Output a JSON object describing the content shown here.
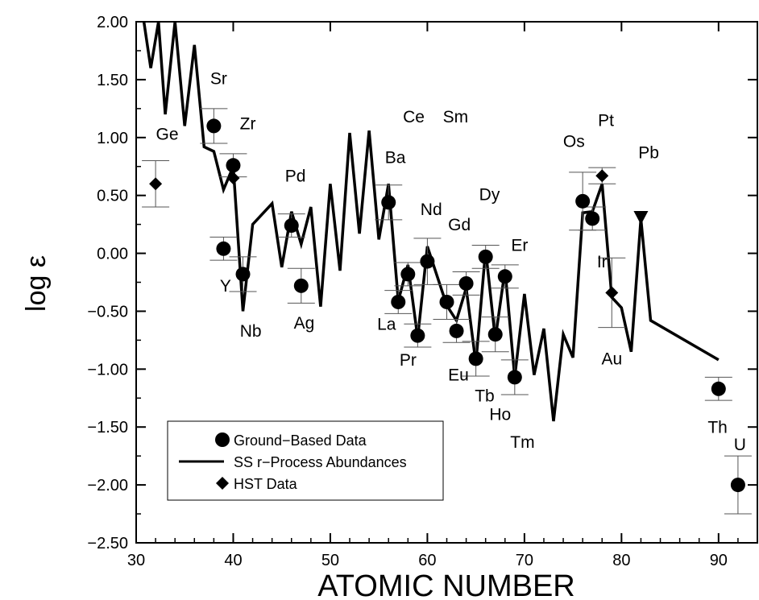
{
  "chart_data": {
    "type": "scatter",
    "title": "",
    "xlabel": "ATOMIC NUMBER",
    "ylabel": "log ε",
    "xlim": [
      30,
      94
    ],
    "ylim": [
      -2.5,
      2.0
    ],
    "xticks": [
      30,
      40,
      50,
      60,
      70,
      80,
      90
    ],
    "xtick_labels": [
      "30",
      "40",
      "50",
      "60",
      "70",
      "80",
      "90"
    ],
    "yticks": [
      2.0,
      1.5,
      1.0,
      0.5,
      0.0,
      -0.5,
      -1.0,
      -1.5,
      -2.0,
      -2.5
    ],
    "ytick_labels": [
      "2.00",
      "1.50",
      "1.00",
      "0.50",
      "0.00",
      "−0.50",
      "−1.00",
      "−1.50",
      "−2.00",
      "−2.50"
    ],
    "grid": false,
    "legend": {
      "position": "bottom-left",
      "entries": [
        "Ground−Based Data",
        "SS r−Process Abundances",
        "HST Data"
      ]
    },
    "series": [
      {
        "name": "Ground−Based Data",
        "marker": "circle",
        "points": [
          {
            "x": 38,
            "y": 1.1,
            "err": 0.15
          },
          {
            "x": 39,
            "y": 0.04,
            "err": 0.1
          },
          {
            "x": 40,
            "y": 0.76,
            "err": 0.1
          },
          {
            "x": 41,
            "y": -0.18,
            "err": 0.15
          },
          {
            "x": 46,
            "y": 0.24,
            "err": 0.1
          },
          {
            "x": 47,
            "y": -0.28,
            "err": 0.15
          },
          {
            "x": 56,
            "y": 0.44,
            "err": 0.15
          },
          {
            "x": 57,
            "y": -0.42,
            "err": 0.1
          },
          {
            "x": 58,
            "y": -0.18,
            "err": 0.1
          },
          {
            "x": 59,
            "y": -0.71,
            "err": 0.1
          },
          {
            "x": 60,
            "y": -0.07,
            "err": 0.2
          },
          {
            "x": 62,
            "y": -0.42,
            "err": 0.15
          },
          {
            "x": 63,
            "y": -0.67,
            "err": 0.1
          },
          {
            "x": 64,
            "y": -0.26,
            "err": 0.1
          },
          {
            "x": 65,
            "y": -0.91,
            "err": 0.15
          },
          {
            "x": 66,
            "y": -0.03,
            "err": 0.1
          },
          {
            "x": 67,
            "y": -0.7,
            "err": 0.15
          },
          {
            "x": 68,
            "y": -0.2,
            "err": 0.1
          },
          {
            "x": 69,
            "y": -1.07,
            "err": 0.15
          },
          {
            "x": 76,
            "y": 0.45,
            "err": 0.25
          },
          {
            "x": 77,
            "y": 0.3,
            "err": 0.1
          },
          {
            "x": 90,
            "y": -1.17,
            "err": 0.1
          },
          {
            "x": 92,
            "y": -2.0,
            "err": 0.25
          }
        ]
      },
      {
        "name": "HST Data",
        "marker": "diamond",
        "points": [
          {
            "x": 32,
            "y": 0.6,
            "err": 0.2
          },
          {
            "x": 40,
            "y": 0.65,
            "err": 0.0
          },
          {
            "x": 78,
            "y": 0.67,
            "err": 0.07
          },
          {
            "x": 79,
            "y": -0.34,
            "err": 0.3
          }
        ]
      },
      {
        "name": "SS r−Process Abundances",
        "marker": "line",
        "x": [
          30.8,
          31.5,
          32.3,
          33.0,
          34.0,
          35.0,
          36.0,
          37.0,
          38.0,
          39.0,
          40.0,
          41.0,
          42.0,
          44.0,
          45.0,
          46.0,
          47.0,
          48.0,
          49.0,
          50.0,
          51.0,
          52.0,
          53.0,
          54.0,
          55.0,
          56.0,
          57.0,
          58.0,
          59.0,
          60.0,
          62.0,
          63.0,
          64.0,
          65.0,
          66.0,
          67.0,
          68.0,
          69.0,
          70.0,
          71.0,
          72.0,
          73.0,
          74.0,
          75.0,
          76.0,
          77.0,
          78.0,
          79.0,
          80.0,
          81.0,
          82.0,
          83.0,
          90.0
        ],
        "y": [
          2.0,
          1.6,
          2.0,
          1.2,
          2.0,
          1.1,
          1.8,
          0.92,
          0.88,
          0.55,
          0.75,
          -0.5,
          0.25,
          0.43,
          -0.12,
          0.36,
          0.08,
          0.4,
          -0.46,
          0.6,
          -0.15,
          1.04,
          0.17,
          1.06,
          0.12,
          0.6,
          -0.41,
          -0.1,
          -0.73,
          0.06,
          -0.45,
          -0.58,
          -0.3,
          -0.95,
          0.03,
          -0.74,
          -0.14,
          -1.07,
          -0.35,
          -1.05,
          -0.65,
          -1.45,
          -0.7,
          -0.9,
          0.35,
          0.36,
          0.6,
          -0.38,
          -0.47,
          -0.85,
          0.3,
          -0.58,
          -0.92
        ]
      },
      {
        "name": "Pb",
        "marker": "triangle-down",
        "points": [
          {
            "x": 82,
            "y": 0.31
          }
        ]
      }
    ],
    "annotations": [
      {
        "text": "Ge",
        "x": 33.2,
        "y": 0.98
      },
      {
        "text": "Sr",
        "x": 38.5,
        "y": 1.46
      },
      {
        "text": "Zr",
        "x": 41.5,
        "y": 1.07
      },
      {
        "text": "Y",
        "x": 39.2,
        "y": -0.33
      },
      {
        "text": "Nb",
        "x": 41.8,
        "y": -0.72
      },
      {
        "text": "Pd",
        "x": 46.4,
        "y": 0.62
      },
      {
        "text": "Ag",
        "x": 47.3,
        "y": -0.65
      },
      {
        "text": "Ce",
        "x": 58.6,
        "y": 1.13
      },
      {
        "text": "Sm",
        "x": 62.9,
        "y": 1.13
      },
      {
        "text": "Ba",
        "x": 56.7,
        "y": 0.78
      },
      {
        "text": "Nd",
        "x": 60.4,
        "y": 0.33
      },
      {
        "text": "Gd",
        "x": 63.3,
        "y": 0.2
      },
      {
        "text": "Dy",
        "x": 66.4,
        "y": 0.46
      },
      {
        "text": "Er",
        "x": 69.5,
        "y": 0.02
      },
      {
        "text": "La",
        "x": 55.8,
        "y": -0.66
      },
      {
        "text": "Pr",
        "x": 58.0,
        "y": -0.97
      },
      {
        "text": "Eu",
        "x": 63.2,
        "y": -1.1
      },
      {
        "text": "Tb",
        "x": 65.9,
        "y": -1.28
      },
      {
        "text": "Ho",
        "x": 67.5,
        "y": -1.44
      },
      {
        "text": "Tm",
        "x": 69.8,
        "y": -1.68
      },
      {
        "text": "Os",
        "x": 75.1,
        "y": 0.92
      },
      {
        "text": "Pt",
        "x": 78.4,
        "y": 1.1
      },
      {
        "text": "Pb",
        "x": 82.8,
        "y": 0.82
      },
      {
        "text": "Ir",
        "x": 78.0,
        "y": -0.12
      },
      {
        "text": "Au",
        "x": 79.0,
        "y": -0.96
      },
      {
        "text": "Th",
        "x": 89.9,
        "y": -1.55
      },
      {
        "text": "U",
        "x": 92.2,
        "y": -1.7
      }
    ]
  }
}
